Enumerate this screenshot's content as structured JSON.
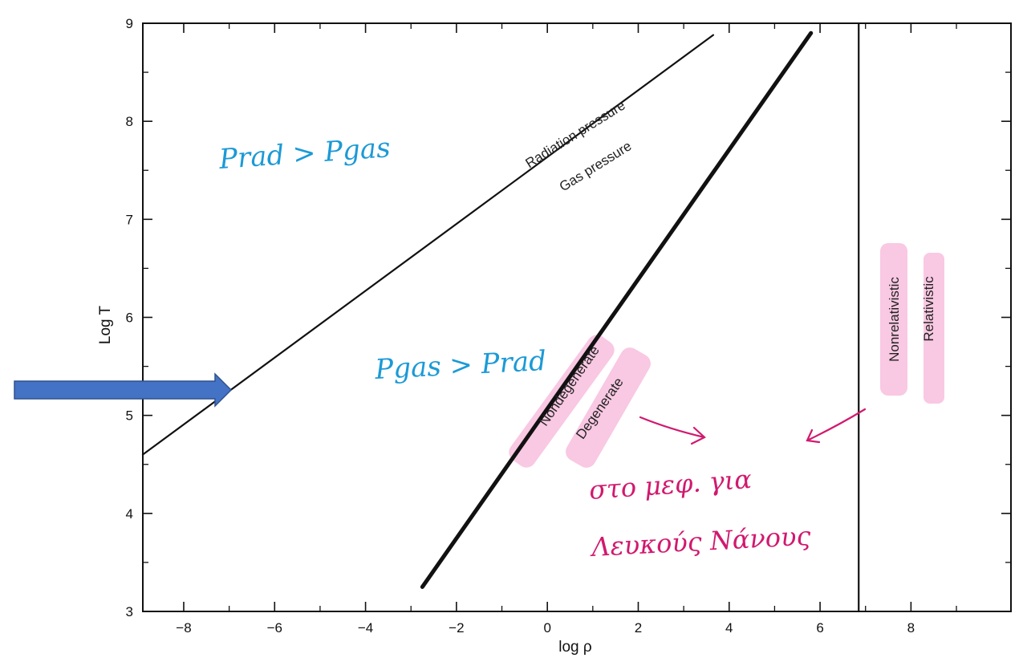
{
  "chart_data": {
    "type": "line",
    "xlabel": "log ρ",
    "ylabel": "Log T",
    "xlim": [
      -8.9,
      10.2
    ],
    "ylim": [
      3,
      9
    ],
    "grid": false,
    "x_ticks": [
      -8,
      -6,
      -4,
      -2,
      0,
      2,
      4,
      6,
      8
    ],
    "y_ticks": [
      3,
      4,
      5,
      6,
      7,
      8,
      9
    ],
    "series": [
      {
        "role": "radiation-vs-gas-boundary",
        "x": [
          -8.9,
          3.65
        ],
        "y": [
          4.6,
          8.88
        ],
        "weight": "thin"
      },
      {
        "role": "degeneracy-boundary",
        "x": [
          -2.75,
          5.8
        ],
        "y": [
          3.25,
          8.9
        ],
        "weight": "thick"
      },
      {
        "role": "relativistic-boundary",
        "x": [
          6.85,
          6.85
        ],
        "y": [
          3.0,
          9.0
        ],
        "weight": "thin"
      }
    ],
    "annotations": {
      "radiation_pressure": "Radiation pressure",
      "gas_pressure": "Gas pressure",
      "nondegenerate": "Nondegenerate",
      "degenerate": "Degenerate",
      "nonrelativistic": "Nonrelativistic",
      "relativistic": "Relativistic"
    }
  },
  "handwriting": {
    "prad_gt_pgas": "Prad > Pgas",
    "pgas_gt_prad": "Pgas > Prad",
    "note_line1": "στο μεφ. για",
    "note_line2": "Λευκούς Νάνους"
  },
  "colors": {
    "ink": "#111111",
    "arrow_fill": "#4472c4",
    "arrow_stroke": "#2f528f",
    "highlight": "#f7b6d9",
    "hand_blue": "#1b9ad6",
    "hand_pink": "#d1196e"
  }
}
